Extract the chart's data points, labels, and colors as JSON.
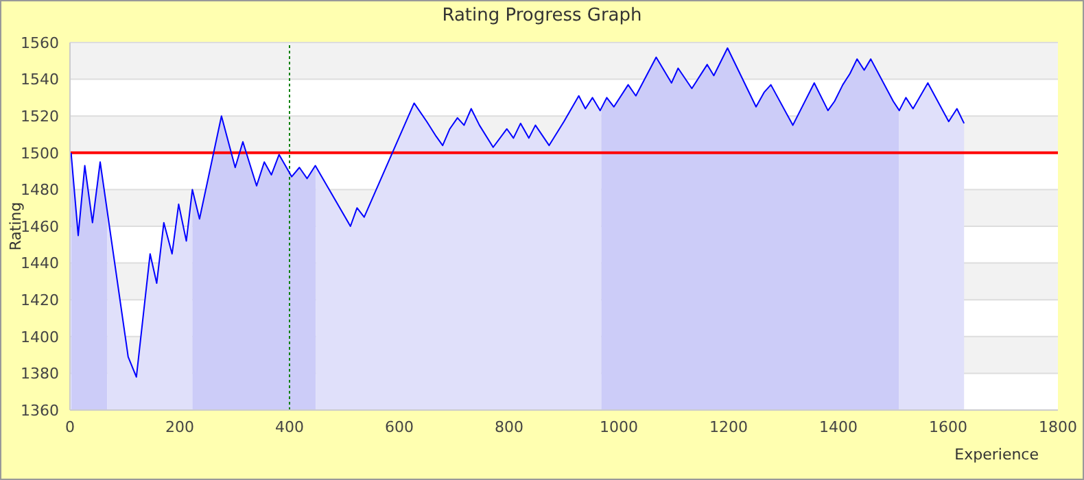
{
  "chart_data": {
    "type": "area",
    "title": "Rating Progress Graph",
    "xlabel": "Experience",
    "ylabel": "Rating",
    "xlim": [
      0,
      1800
    ],
    "xticks": [
      0,
      200,
      400,
      600,
      800,
      1000,
      1200,
      1400,
      1600,
      1800
    ],
    "ylim": [
      1360,
      1560
    ],
    "yticks": [
      1360,
      1380,
      1400,
      1420,
      1440,
      1460,
      1480,
      1500,
      1520,
      1540,
      1560
    ],
    "grid": "y",
    "ref_lines": [
      {
        "axis": "y",
        "value": 1500,
        "color": "#ff0000",
        "line_style": "solid"
      },
      {
        "axis": "x",
        "value": 400,
        "color": "#008000",
        "line_style": "dotted"
      }
    ],
    "series": [
      {
        "color": "#ccccf8",
        "x": [
          2,
          15,
          27,
          41,
          55,
          68
        ],
        "values": [
          1500,
          1455,
          1493,
          1462,
          1495,
          1468
        ]
      },
      {
        "color": "#e0e0fa",
        "x": [
          68,
          106,
          121,
          146,
          158,
          171,
          186,
          198,
          212,
          223
        ],
        "values": [
          1468,
          1389,
          1378,
          1445,
          1429,
          1462,
          1445,
          1472,
          1452,
          1480
        ]
      },
      {
        "color": "#ccccf8",
        "x": [
          223,
          236,
          276,
          301,
          315,
          340,
          354,
          367,
          381,
          404,
          418,
          432,
          447,
          448
        ],
        "values": [
          1480,
          1464,
          1520,
          1492,
          1506,
          1482,
          1495,
          1488,
          1499,
          1487,
          1492,
          1486,
          1493,
          1493
        ]
      },
      {
        "color": "#e0e0fa",
        "x": [
          448,
          511,
          523,
          536,
          627,
          650,
          667,
          679,
          692,
          706,
          718,
          731,
          746,
          771,
          796,
          808,
          821,
          836,
          848,
          873,
          900,
          927,
          939,
          952,
          966,
          968
        ],
        "values": [
          1493,
          1460,
          1470,
          1465,
          1527,
          1517,
          1509,
          1504,
          1513,
          1519,
          1515,
          1524,
          1515,
          1503,
          1513,
          1508,
          1516,
          1508,
          1515,
          1504,
          1517,
          1531,
          1524,
          1530,
          1523,
          1524
        ]
      },
      {
        "color": "#ccccf8",
        "x": [
          968,
          978,
          991,
          1017,
          1031,
          1068,
          1096,
          1108,
          1133,
          1161,
          1173,
          1198,
          1250,
          1265,
          1277,
          1317,
          1356,
          1381,
          1393,
          1408,
          1421,
          1434,
          1447,
          1459,
          1500,
          1510
        ],
        "values": [
          1524,
          1530,
          1525,
          1537,
          1531,
          1552,
          1538,
          1546,
          1535,
          1548,
          1542,
          1557,
          1525,
          1533,
          1537,
          1515,
          1538,
          1523,
          1528,
          1537,
          1543,
          1551,
          1545,
          1551,
          1528,
          1523
        ]
      },
      {
        "color": "#e0e0fa",
        "x": [
          1510,
          1523,
          1536,
          1563,
          1601,
          1616,
          1629
        ],
        "values": [
          1523,
          1530,
          1524,
          1538,
          1517,
          1524,
          1516
        ]
      },
      {
        "type": "line",
        "color": "#0000ff",
        "x": [
          2,
          15,
          27,
          41,
          55,
          106,
          121,
          146,
          158,
          171,
          186,
          198,
          212,
          223,
          236,
          276,
          301,
          315,
          340,
          354,
          367,
          381,
          404,
          418,
          432,
          447,
          511,
          523,
          536,
          627,
          650,
          667,
          679,
          692,
          706,
          718,
          731,
          746,
          771,
          796,
          808,
          821,
          836,
          848,
          873,
          900,
          927,
          939,
          952,
          966,
          978,
          991,
          1017,
          1031,
          1068,
          1096,
          1108,
          1133,
          1161,
          1173,
          1198,
          1250,
          1265,
          1277,
          1317,
          1356,
          1381,
          1393,
          1408,
          1421,
          1434,
          1447,
          1459,
          1500,
          1511,
          1523,
          1536,
          1563,
          1601,
          1616,
          1629
        ],
        "values": [
          1500,
          1455,
          1493,
          1462,
          1495,
          1389,
          1378,
          1445,
          1429,
          1462,
          1445,
          1472,
          1452,
          1480,
          1464,
          1520,
          1492,
          1506,
          1482,
          1495,
          1488,
          1499,
          1487,
          1492,
          1486,
          1493,
          1460,
          1470,
          1465,
          1527,
          1517,
          1509,
          1504,
          1513,
          1519,
          1515,
          1524,
          1515,
          1503,
          1513,
          1508,
          1516,
          1508,
          1515,
          1504,
          1517,
          1531,
          1524,
          1530,
          1523,
          1530,
          1525,
          1537,
          1531,
          1552,
          1538,
          1546,
          1535,
          1548,
          1542,
          1557,
          1525,
          1533,
          1537,
          1515,
          1538,
          1523,
          1528,
          1537,
          1543,
          1551,
          1545,
          1551,
          1528,
          1523,
          1530,
          1524,
          1538,
          1517,
          1524,
          1516
        ]
      }
    ]
  }
}
